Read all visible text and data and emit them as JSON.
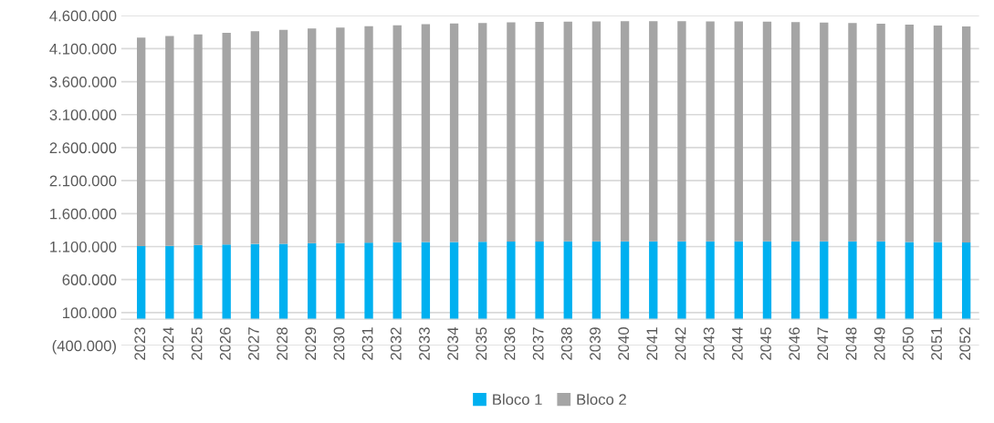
{
  "chart_data": {
    "type": "bar",
    "stacked": true,
    "categories": [
      "2023",
      "2024",
      "2025",
      "2026",
      "2027",
      "2028",
      "2029",
      "2030",
      "2031",
      "2032",
      "2033",
      "2034",
      "2035",
      "2036",
      "2037",
      "2038",
      "2039",
      "2040",
      "2041",
      "2042",
      "2043",
      "2044",
      "2045",
      "2046",
      "2047",
      "2048",
      "2049",
      "2050",
      "2051",
      "2052"
    ],
    "series": [
      {
        "name": "Bloco 1",
        "color": "#00b0f0",
        "values": [
          1108000,
          1110000,
          1126000,
          1130000,
          1140000,
          1142000,
          1153000,
          1155000,
          1160000,
          1165000,
          1168000,
          1170000,
          1172000,
          1175000,
          1177000,
          1178000,
          1180000,
          1180000,
          1181000,
          1181000,
          1181000,
          1181000,
          1181000,
          1180000,
          1180000,
          1179000,
          1178000,
          1170000,
          1170000,
          1163000
        ]
      },
      {
        "name": "Bloco 2",
        "color": "#a5a5a5",
        "values": [
          3158000,
          3180000,
          3191000,
          3210000,
          3223000,
          3244000,
          3251000,
          3263000,
          3280000,
          3290000,
          3302000,
          3310000,
          3318000,
          3325000,
          3328000,
          3332000,
          3332000,
          3335000,
          3334000,
          3334000,
          3332000,
          3331000,
          3329000,
          3321000,
          3316000,
          3308000,
          3300000,
          3294000,
          3280000,
          3273000
        ]
      }
    ],
    "ylim": [
      -400000,
      4600000
    ],
    "yticks": [
      {
        "value": -400000,
        "label": "(400.000)"
      },
      {
        "value": 100000,
        "label": "100.000"
      },
      {
        "value": 600000,
        "label": "600.000"
      },
      {
        "value": 1100000,
        "label": "1.100.000"
      },
      {
        "value": 1600000,
        "label": "1.600.000"
      },
      {
        "value": 2100000,
        "label": "2.100.000"
      },
      {
        "value": 2600000,
        "label": "2.600.000"
      },
      {
        "value": 3100000,
        "label": "3.100.000"
      },
      {
        "value": 3600000,
        "label": "3.600.000"
      },
      {
        "value": 4100000,
        "label": "4.100.000"
      },
      {
        "value": 4600000,
        "label": "4.600.000"
      }
    ],
    "grid": "y",
    "legend": "bottom"
  }
}
